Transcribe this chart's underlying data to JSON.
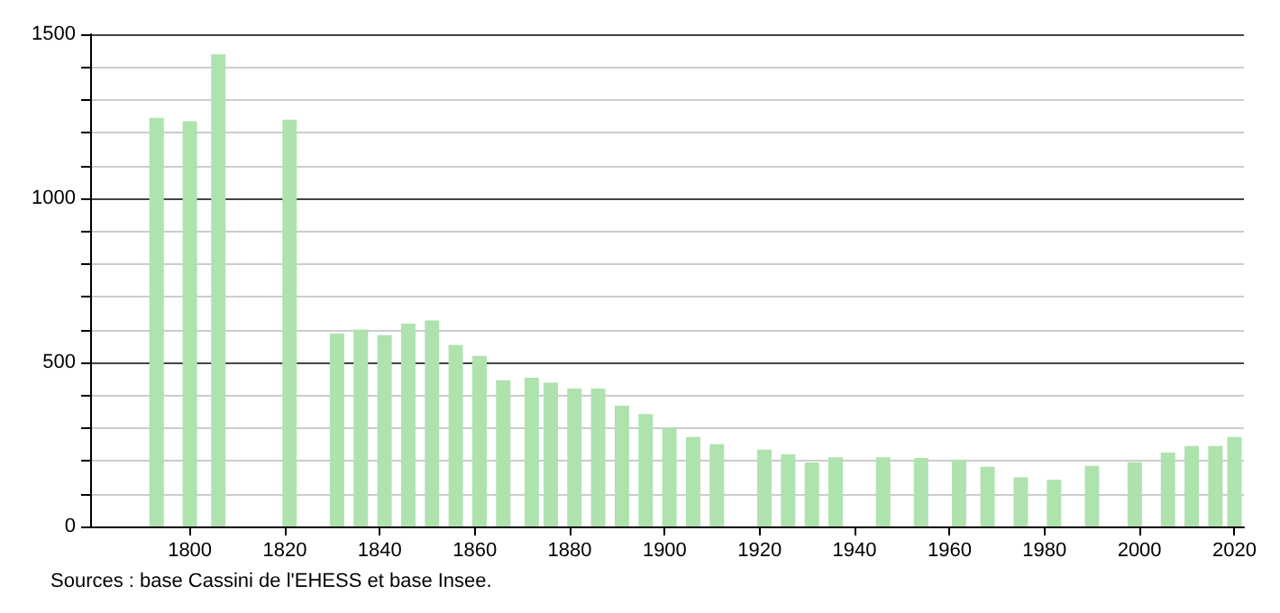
{
  "chart_data": {
    "type": "bar",
    "x": [
      1793,
      1800,
      1806,
      1821,
      1831,
      1836,
      1841,
      1846,
      1851,
      1856,
      1861,
      1866,
      1872,
      1876,
      1881,
      1886,
      1891,
      1896,
      1901,
      1906,
      1911,
      1921,
      1926,
      1931,
      1936,
      1946,
      1954,
      1962,
      1968,
      1975,
      1982,
      1990,
      1999,
      2006,
      2011,
      2016,
      2020
    ],
    "values": [
      1245,
      1235,
      1439,
      1240,
      588,
      600,
      583,
      618,
      628,
      553,
      520,
      446,
      453,
      438,
      420,
      420,
      368,
      343,
      299,
      273,
      251,
      234,
      220,
      195,
      211,
      211,
      209,
      204,
      182,
      150,
      142,
      185,
      196,
      225,
      245,
      245,
      273
    ],
    "color": "#aee3ae",
    "xlim": [
      1779,
      2022
    ],
    "xticks": [
      1800,
      1820,
      1840,
      1860,
      1880,
      1900,
      1920,
      1940,
      1960,
      1980,
      2000,
      2020
    ],
    "ylim": [
      0,
      1500
    ],
    "yticks": [
      0,
      {
        "value": 100,
        "label": null
      },
      {
        "value": 200,
        "label": null
      },
      {
        "value": 300,
        "label": null
      },
      {
        "value": 400,
        "label": null
      },
      500,
      {
        "value": 600,
        "label": null
      },
      {
        "value": 700,
        "label": null
      },
      {
        "value": 800,
        "label": null
      },
      {
        "value": 900,
        "label": null
      },
      1000,
      {
        "value": 1100,
        "label": null
      },
      {
        "value": 1200,
        "label": null
      },
      {
        "value": 1300,
        "label": null
      },
      {
        "value": 1400,
        "label": null
      },
      1500
    ],
    "grid": "y",
    "annotations": [
      "Sources : base Cassini de l'EHESS et base Insee."
    ]
  }
}
